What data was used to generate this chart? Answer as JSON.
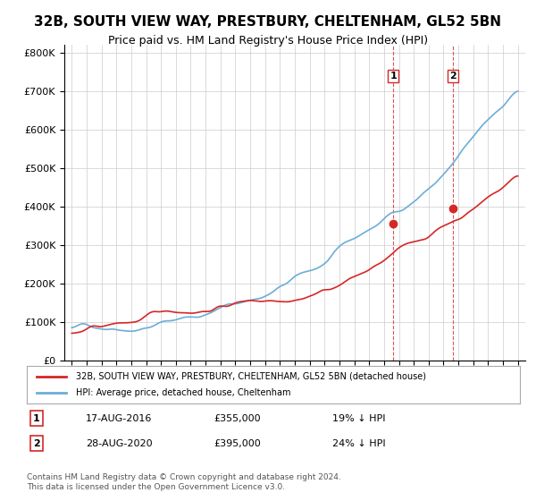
{
  "title": "32B, SOUTH VIEW WAY, PRESTBURY, CHELTENHAM, GL52 5BN",
  "subtitle": "Price paid vs. HM Land Registry's House Price Index (HPI)",
  "title_fontsize": 11,
  "subtitle_fontsize": 9,
  "ylim": [
    0,
    820000
  ],
  "yticks": [
    0,
    100000,
    200000,
    300000,
    400000,
    500000,
    600000,
    700000,
    800000
  ],
  "ytick_labels": [
    "£0",
    "£100K",
    "£200K",
    "£300K",
    "£400K",
    "£500K",
    "£600K",
    "£700K",
    "£800K"
  ],
  "year_start": 1995,
  "year_end": 2025,
  "hpi_color": "#6baed6",
  "price_color": "#d62728",
  "vline_color": "#d62728",
  "vline_style": "--",
  "transaction1_year": 2016.625,
  "transaction1_price": 355000,
  "transaction1_label": "1",
  "transaction2_year": 2020.65,
  "transaction2_price": 395000,
  "transaction2_label": "2",
  "legend_label1": "32B, SOUTH VIEW WAY, PRESTBURY, CHELTENHAM, GL52 5BN (detached house)",
  "legend_label2": "HPI: Average price, detached house, Cheltenham",
  "table_row1_num": "1",
  "table_row1_date": "17-AUG-2016",
  "table_row1_price": "£355,000",
  "table_row1_hpi": "19% ↓ HPI",
  "table_row2_num": "2",
  "table_row2_date": "28-AUG-2020",
  "table_row2_price": "£395,000",
  "table_row2_hpi": "24% ↓ HPI",
  "footer": "Contains HM Land Registry data © Crown copyright and database right 2024.\nThis data is licensed under the Open Government Licence v3.0.",
  "bg_color": "#ffffff",
  "grid_color": "#cccccc"
}
